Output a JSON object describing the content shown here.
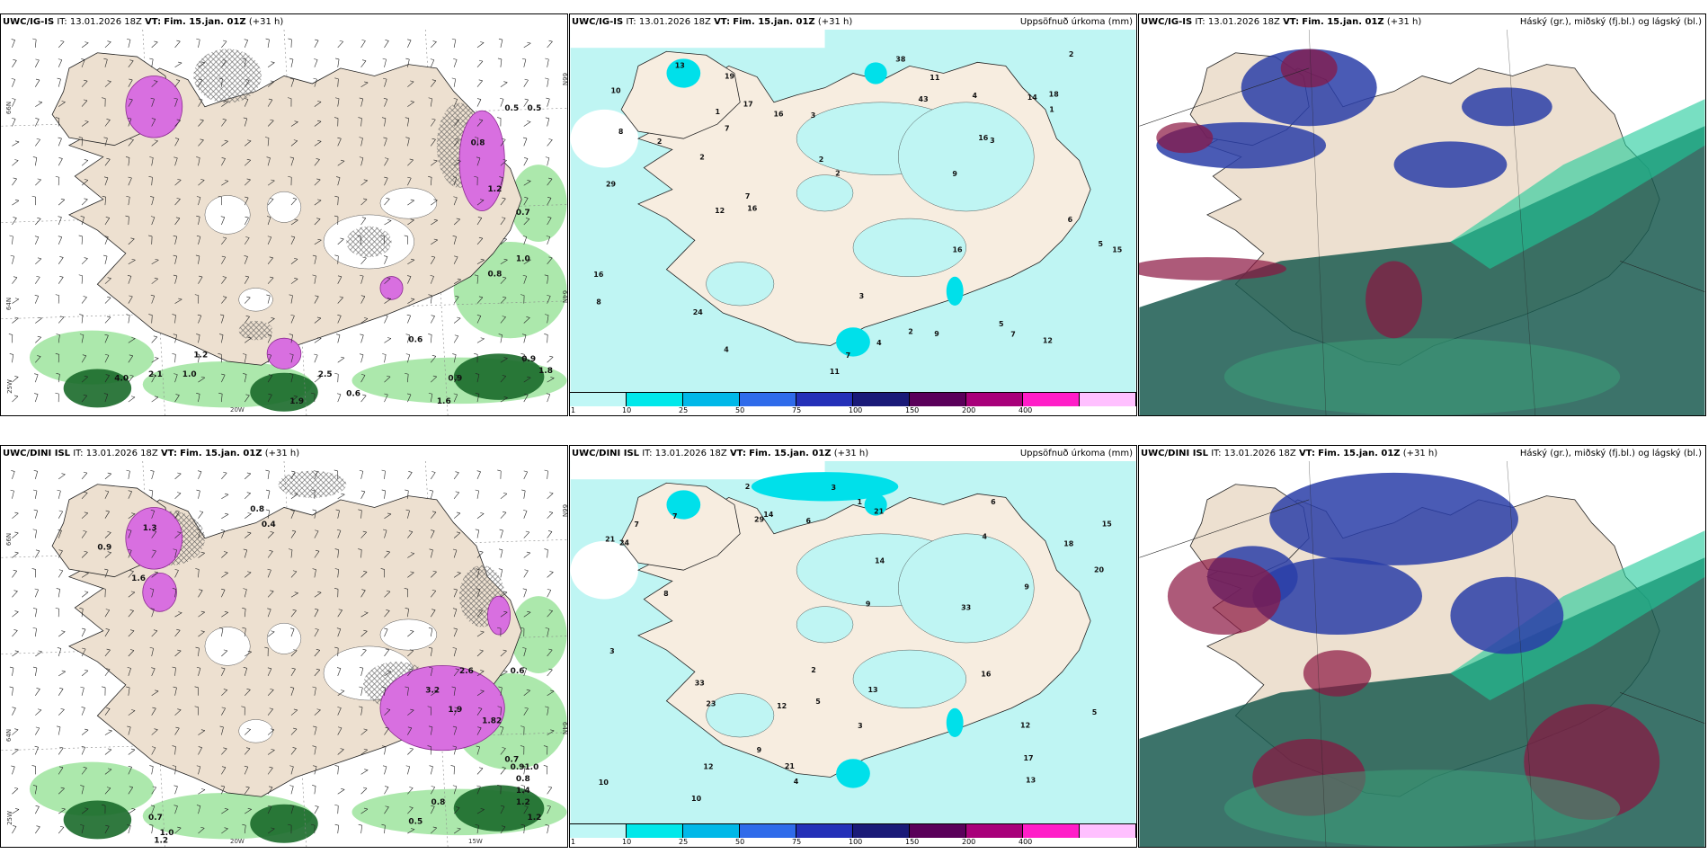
{
  "colors": {
    "land": "#ede0d0",
    "precip_light": "#bff5f3",
    "wind_green": "#90e090",
    "wind_dark": "#1a6a2a",
    "magenta": "#d86fe0",
    "cloud_high": "#2a3ea8",
    "cloud_mid": "#c45a5a",
    "cloud_low": "#1a5a50"
  },
  "legend": {
    "colors": [
      "#c0f7f6",
      "#00e8ea",
      "#00b8e8",
      "#2f6bea",
      "#2430b8",
      "#1a1a78",
      "#5a005a",
      "#a8007a",
      "#ff1ec8",
      "#ffc0ff"
    ],
    "labels": [
      "1",
      "10",
      "25",
      "50",
      "75",
      "100",
      "150",
      "200",
      "400"
    ]
  },
  "rows": [
    {
      "model": "UWC/IG-IS",
      "it_label": "IT:",
      "it_value": "13.01.2026 18Z",
      "vt_label": "VT:",
      "vt_value": "Fim. 15.jan. 01Z",
      "lead": "(+31 h)",
      "wind_title_right": "",
      "precip_title_right": "Uppsöfnuð úrkoma (mm)",
      "cloud_title_right": "Háský (gr.), miðský (fj.bl.) og lágský (bl.)",
      "coords": {
        "lat66": "66N",
        "lat65": "64N",
        "lon25": "25W",
        "lon20": "20W",
        "lat66r": "66N",
        "lat64r": "64N"
      },
      "wind_values": [
        {
          "v": "0.5"
        },
        {
          "v": "0.5"
        },
        {
          "v": "0.8"
        },
        {
          "v": "1.2"
        },
        {
          "v": "1.0"
        },
        {
          "v": "0.8"
        },
        {
          "v": "0.6"
        },
        {
          "v": "1.2"
        },
        {
          "v": "4.0"
        },
        {
          "v": "2.1"
        },
        {
          "v": "1.0"
        },
        {
          "v": "1.9"
        },
        {
          "v": "2.5"
        },
        {
          "v": "0.6"
        },
        {
          "v": "0.9"
        },
        {
          "v": "1.6"
        },
        {
          "v": "0.9"
        },
        {
          "v": "1.8"
        },
        {
          "v": "0.7"
        }
      ],
      "precip_values": [
        {
          "v": "8"
        },
        {
          "v": "7"
        },
        {
          "v": "9"
        },
        {
          "v": "7"
        },
        {
          "v": "14"
        },
        {
          "v": "11"
        },
        {
          "v": "16"
        },
        {
          "v": "16"
        },
        {
          "v": "18"
        },
        {
          "v": "15"
        },
        {
          "v": "5"
        },
        {
          "v": "17"
        },
        {
          "v": "16"
        },
        {
          "v": "24"
        },
        {
          "v": "29"
        },
        {
          "v": "4"
        },
        {
          "v": "7"
        },
        {
          "v": "3"
        },
        {
          "v": "12"
        },
        {
          "v": "2"
        },
        {
          "v": "7"
        },
        {
          "v": "6"
        },
        {
          "v": "2"
        },
        {
          "v": "3"
        },
        {
          "v": "4"
        },
        {
          "v": "2"
        },
        {
          "v": "1"
        },
        {
          "v": "11"
        },
        {
          "v": "13"
        },
        {
          "v": "12"
        },
        {
          "v": "16"
        },
        {
          "v": "9"
        },
        {
          "v": "2"
        },
        {
          "v": "2"
        },
        {
          "v": "10"
        },
        {
          "v": "19"
        },
        {
          "v": "16"
        },
        {
          "v": "43"
        },
        {
          "v": "38"
        },
        {
          "v": "8"
        },
        {
          "v": "3"
        },
        {
          "v": "1"
        },
        {
          "v": "2"
        },
        {
          "v": "5"
        },
        {
          "v": "4"
        }
      ]
    },
    {
      "model": "UWC/DINI ISL",
      "it_label": "IT:",
      "it_value": "13.01.2026 18Z",
      "vt_label": "VT:",
      "vt_value": "Fim. 15.jan. 01Z",
      "lead": "(+31 h)",
      "wind_title_right": "",
      "precip_title_right": "Uppsöfnuð úrkoma (mm)",
      "cloud_title_right": "Háský (gr.), miðský (fj.bl.) og lágský (bl.)",
      "coords": {
        "lat66": "66N",
        "lat65": "64N",
        "lon25": "25W",
        "lon20": "20W",
        "lon15": "15W",
        "lat66r": "66N",
        "lat64r": "64N"
      },
      "wind_values": [
        {
          "v": "1.3"
        },
        {
          "v": "0.9"
        },
        {
          "v": "1.6"
        },
        {
          "v": "0.8"
        },
        {
          "v": "0.4"
        },
        {
          "v": "2.6"
        },
        {
          "v": "3.2"
        },
        {
          "v": "1.9"
        },
        {
          "v": "1.82"
        },
        {
          "v": "0.6"
        },
        {
          "v": "0.7"
        },
        {
          "v": "0.91.0"
        },
        {
          "v": "0.8"
        },
        {
          "v": "1.4"
        },
        {
          "v": "1.2"
        },
        {
          "v": "1.2"
        },
        {
          "v": "0.8"
        },
        {
          "v": "0.7"
        },
        {
          "v": "1.0"
        },
        {
          "v": "1.2"
        },
        {
          "v": "0.5"
        }
      ],
      "precip_values": [
        {
          "v": "14"
        },
        {
          "v": "12"
        },
        {
          "v": "9"
        },
        {
          "v": "10"
        },
        {
          "v": "3"
        },
        {
          "v": "21"
        },
        {
          "v": "33"
        },
        {
          "v": "33"
        },
        {
          "v": "15"
        },
        {
          "v": "23"
        },
        {
          "v": "21"
        },
        {
          "v": "20"
        },
        {
          "v": "24"
        },
        {
          "v": "29"
        },
        {
          "v": "17"
        },
        {
          "v": "14"
        },
        {
          "v": "12"
        },
        {
          "v": "18"
        },
        {
          "v": "21"
        },
        {
          "v": "13"
        },
        {
          "v": "13"
        },
        {
          "v": "9"
        },
        {
          "v": "7"
        },
        {
          "v": "3"
        },
        {
          "v": "2"
        },
        {
          "v": "5"
        },
        {
          "v": "4"
        },
        {
          "v": "16"
        },
        {
          "v": "12"
        },
        {
          "v": "10"
        },
        {
          "v": "9"
        },
        {
          "v": "6"
        },
        {
          "v": "7"
        },
        {
          "v": "5"
        },
        {
          "v": "2"
        },
        {
          "v": "1"
        },
        {
          "v": "4"
        },
        {
          "v": "3"
        },
        {
          "v": "6"
        },
        {
          "v": "8"
        }
      ]
    }
  ]
}
